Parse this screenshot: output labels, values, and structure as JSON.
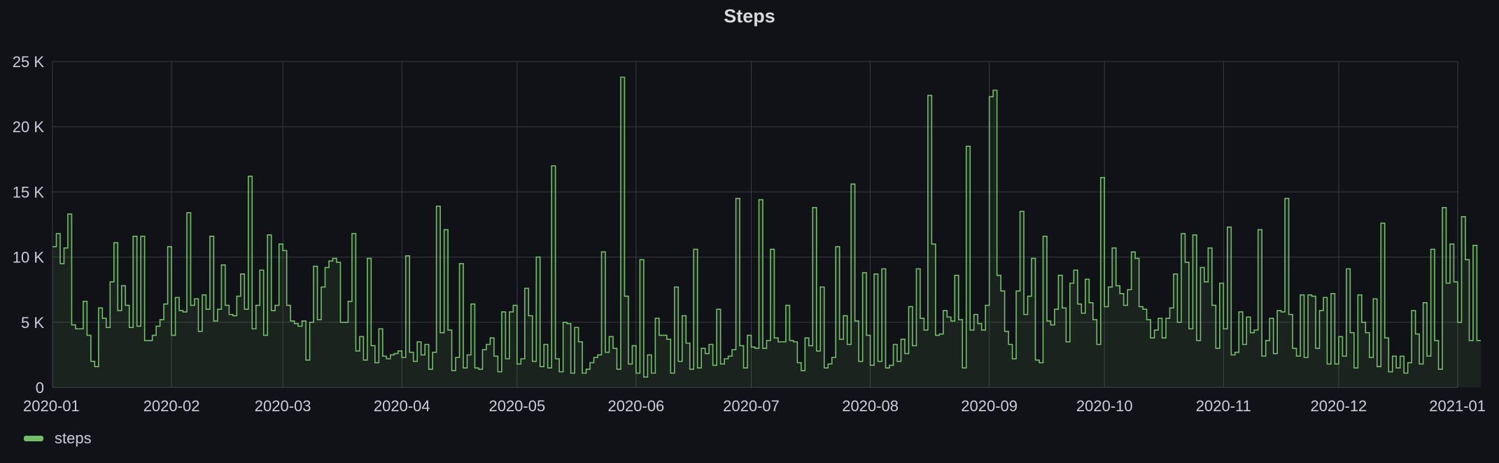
{
  "colors": {
    "background": "#111217",
    "grid": "#3a3b41",
    "series": "#73bf69",
    "text": "#ccccdc"
  },
  "chart_data": {
    "type": "line",
    "title": "Steps",
    "xlabel": "",
    "ylabel": "",
    "ylim": [
      0,
      25000
    ],
    "y_ticks": [
      {
        "value": 0,
        "label": "0"
      },
      {
        "value": 5000,
        "label": "5 K"
      },
      {
        "value": 10000,
        "label": "10 K"
      },
      {
        "value": 15000,
        "label": "15 K"
      },
      {
        "value": 20000,
        "label": "20 K"
      },
      {
        "value": 25000,
        "label": "25 K"
      }
    ],
    "x_ticks": [
      "2020-01",
      "2020-02",
      "2020-03",
      "2020-04",
      "2020-05",
      "2020-06",
      "2020-07",
      "2020-08",
      "2020-09",
      "2020-10",
      "2020-11",
      "2020-12",
      "2021-01"
    ],
    "xlim": [
      "2020-01-01",
      "2021-01-01"
    ],
    "grid": true,
    "legend_position": "bottom-left",
    "fill_area": true,
    "interpolation": "step",
    "series": [
      {
        "name": "steps",
        "x_start": "2020-01-01",
        "x_interval": "1 day",
        "values": [
          10800,
          11800,
          9500,
          10700,
          13300,
          4800,
          4500,
          4500,
          6600,
          4000,
          2000,
          1600,
          6100,
          5300,
          4600,
          8100,
          11100,
          5900,
          7800,
          6300,
          4600,
          11600,
          4700,
          11600,
          3600,
          3600,
          4000,
          4700,
          5200,
          6400,
          10800,
          4000,
          6900,
          5900,
          5800,
          13400,
          6300,
          6800,
          4300,
          7100,
          6000,
          11600,
          5100,
          6000,
          9400,
          6300,
          5600,
          5500,
          7000,
          8700,
          6000,
          16200,
          4500,
          6300,
          9000,
          4000,
          11700,
          5900,
          6300,
          11000,
          10500,
          6300,
          5100,
          4900,
          4700,
          5100,
          2100,
          5000,
          9300,
          5200,
          7700,
          9200,
          9700,
          9900,
          9600,
          5000,
          5000,
          6600,
          11800,
          2800,
          3900,
          2100,
          9900,
          3200,
          1900,
          4500,
          2400,
          2200,
          2500,
          2600,
          2800,
          2300,
          10100,
          2700,
          2000,
          3500,
          2500,
          3300,
          1400,
          2700,
          13900,
          4200,
          12100,
          4400,
          1300,
          2300,
          9500,
          1500,
          2500,
          6400,
          1500,
          1400,
          2900,
          3300,
          3800,
          2400,
          1200,
          5800,
          2200,
          5800,
          6300,
          1800,
          2200,
          7600,
          5500,
          2000,
          10000,
          1600,
          3300,
          1500,
          17000,
          2200,
          1200,
          5000,
          4900,
          1100,
          4600,
          3500,
          1100,
          1400,
          1900,
          2300,
          2500,
          10400,
          2700,
          3900,
          3000,
          1400,
          23800,
          7000,
          1800,
          3200,
          1100,
          9800,
          800,
          2500,
          1100,
          5300,
          4000,
          4000,
          3700,
          1100,
          7700,
          2000,
          5500,
          3400,
          1400,
          10600,
          1500,
          3000,
          2600,
          3300,
          1700,
          6000,
          1800,
          2200,
          2400,
          2900,
          14500,
          3200,
          1500,
          4000,
          3100,
          3000,
          14400,
          3000,
          3600,
          10600,
          3800,
          3500,
          3500,
          6300,
          3600,
          3500,
          1900,
          1300,
          3800,
          3200,
          13800,
          2800,
          7700,
          1500,
          1800,
          2300,
          10800,
          3700,
          5500,
          3300,
          15600,
          5100,
          2000,
          8800,
          4000,
          1700,
          8700,
          2000,
          9100,
          1500,
          1700,
          3300,
          2000,
          3700,
          2600,
          6200,
          3200,
          9100,
          5300,
          4400,
          22400,
          11000,
          4000,
          4100,
          5900,
          5400,
          5100,
          8600,
          5200,
          1500,
          18500,
          4400,
          5600,
          4900,
          4400,
          6300,
          22300,
          22800,
          8600,
          7400,
          4300,
          3300,
          2200,
          7400,
          13500,
          5600,
          7000,
          9900,
          2100,
          1900,
          11600,
          5100,
          4800,
          6000,
          8600,
          6100,
          3500,
          8000,
          9000,
          6400,
          5700,
          8300,
          6500,
          5200,
          3300,
          16100,
          6200,
          7700,
          10700,
          7800,
          7200,
          6300,
          7500,
          10400,
          9900,
          6200,
          6000,
          5200,
          3800,
          4400,
          5300,
          3800,
          5300,
          6100,
          8700,
          5000,
          11800,
          9600,
          4500,
          11700,
          3600,
          9200,
          8100,
          10700,
          6300,
          3000,
          8000,
          4500,
          12300,
          2500,
          2700,
          5800,
          3300,
          5400,
          4200,
          4400,
          12100,
          2400,
          3600,
          5300,
          2600,
          5900,
          5800,
          14500,
          5600,
          3000,
          2400,
          7100,
          2300,
          7100,
          7000,
          3000,
          5900,
          6900,
          1800,
          7200,
          1800,
          3900,
          2400,
          9100,
          4200,
          1500,
          7100,
          5000,
          4200,
          2300,
          6800,
          1600,
          12600,
          3800,
          1200,
          2400,
          1500,
          2400,
          1100,
          1900,
          5900,
          4100,
          1800,
          6500,
          2400,
          10600,
          3600,
          1400,
          13800,
          8000,
          11000,
          8100,
          5000,
          13100,
          9800,
          3600,
          10900,
          3600
        ]
      }
    ]
  }
}
